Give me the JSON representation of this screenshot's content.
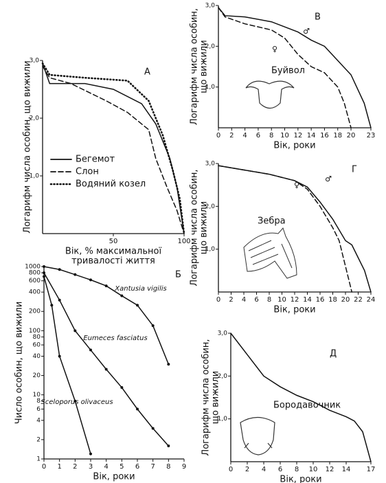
{
  "chart_data": [
    {
      "type": "line",
      "label": "А",
      "ylabel": "Логарифм числа особин, що вижили",
      "xlabel": [
        "Вік, % максимальної",
        "тривалості життя"
      ],
      "xlim": [
        0,
        100
      ],
      "ylim": [
        0,
        3
      ],
      "xticks": [
        50,
        100
      ],
      "yticks": [
        {
          "value": 1,
          "label": "1,0"
        },
        {
          "value": 2,
          "label": "2,0"
        },
        {
          "value": 3,
          "label": "3,0"
        }
      ],
      "legend": "center-left",
      "series": [
        {
          "name": "Бегемот",
          "color": "#111111",
          "style": "solid",
          "x": [
            0,
            5,
            30,
            50,
            70,
            80,
            90,
            95,
            100
          ],
          "values": [
            2.95,
            2.6,
            2.6,
            2.5,
            2.25,
            1.9,
            1.3,
            0.8,
            0
          ]
        },
        {
          "name": "Слон",
          "color": "#111111",
          "style": "dashed",
          "x": [
            0,
            5,
            20,
            45,
            60,
            75,
            80,
            88,
            95,
            100
          ],
          "values": [
            2.9,
            2.7,
            2.6,
            2.3,
            2.1,
            1.8,
            1.3,
            0.8,
            0.4,
            0
          ]
        },
        {
          "name": "Водяний козел",
          "color": "#111111",
          "style": "dotted",
          "x": [
            0,
            5,
            30,
            60,
            75,
            85,
            92,
            97,
            100
          ],
          "values": [
            2.95,
            2.75,
            2.7,
            2.65,
            2.3,
            1.7,
            1.1,
            0.6,
            0
          ]
        }
      ]
    },
    {
      "type": "line",
      "label": "Б",
      "ylabel": "Число особин, що вижили",
      "xlabel": [
        "Вік, роки"
      ],
      "xlim": [
        0,
        9
      ],
      "ylim": [
        1,
        1000
      ],
      "log_y": true,
      "markers": true,
      "xticks": [
        0,
        1,
        2,
        3,
        4,
        5,
        6,
        7,
        8,
        9
      ],
      "yticks": [
        1,
        2,
        4,
        6,
        8,
        10,
        20,
        40,
        60,
        80,
        100,
        200,
        400,
        600,
        800,
        1000
      ],
      "series": [
        {
          "name": "Xantusia vigilis",
          "color": "#111111",
          "style": "solid",
          "x": [
            0,
            1,
            2,
            3,
            4,
            5,
            6,
            7,
            8
          ],
          "values": [
            1000,
            900,
            750,
            620,
            500,
            350,
            250,
            120,
            30
          ]
        },
        {
          "name": "Eumeces fasciatus",
          "color": "#111111",
          "style": "solid",
          "x": [
            0,
            1,
            2,
            3,
            4,
            5,
            6,
            7,
            8
          ],
          "values": [
            800,
            300,
            100,
            50,
            25,
            13,
            6,
            3,
            1.6
          ]
        },
        {
          "name": "Sceloporus olivaceus",
          "color": "#111111",
          "style": "solid",
          "x": [
            0,
            0.5,
            1,
            2,
            3
          ],
          "values": [
            700,
            250,
            40,
            8,
            1.2
          ]
        }
      ]
    },
    {
      "type": "line",
      "label": "В",
      "animal": "Буйвол",
      "ylabel": [
        "Логарифм числа особин,",
        "що вижили"
      ],
      "xlabel": [
        "Вік, роки"
      ],
      "xlim": [
        0,
        23
      ],
      "ylim": [
        0,
        3
      ],
      "xticks": [
        0,
        2,
        4,
        6,
        8,
        10,
        12,
        14,
        16,
        18,
        20,
        23
      ],
      "yticks": [
        {
          "value": 1,
          "label": "1,0"
        },
        {
          "value": 2,
          "label": "2,0"
        },
        {
          "value": 3,
          "label": "3,0"
        }
      ],
      "series": [
        {
          "name": "♂",
          "color": "#111111",
          "style": "solid",
          "x": [
            0,
            1,
            4,
            8,
            12,
            14,
            16,
            18,
            20,
            22,
            23
          ],
          "values": [
            2.95,
            2.75,
            2.72,
            2.6,
            2.35,
            2.15,
            2.0,
            1.65,
            1.3,
            0.6,
            0
          ]
        },
        {
          "name": "♀",
          "color": "#111111",
          "style": "dashed",
          "x": [
            0,
            1,
            4,
            8,
            10,
            12,
            14,
            16,
            18,
            19,
            20
          ],
          "values": [
            2.95,
            2.72,
            2.55,
            2.4,
            2.2,
            1.8,
            1.5,
            1.35,
            1.0,
            0.6,
            0
          ]
        }
      ]
    },
    {
      "type": "line",
      "label": "Г",
      "animal": "Зебра",
      "ylabel": [
        "Логарифм числа особин,",
        "що вижили"
      ],
      "xlabel": [
        "Вік, роки"
      ],
      "xlim": [
        0,
        24
      ],
      "ylim": [
        0,
        3
      ],
      "xticks": [
        0,
        2,
        4,
        6,
        8,
        10,
        12,
        14,
        16,
        18,
        20,
        22,
        24
      ],
      "yticks": [
        {
          "value": 1,
          "label": "1,0"
        },
        {
          "value": 2,
          "label": "2,0"
        },
        {
          "value": 3,
          "label": "3,0"
        }
      ],
      "series": [
        {
          "name": "♂",
          "color": "#111111",
          "style": "solid",
          "x": [
            0,
            4,
            8,
            12,
            14,
            16,
            18,
            20,
            21,
            22,
            23,
            24
          ],
          "values": [
            2.95,
            2.85,
            2.75,
            2.6,
            2.45,
            2.1,
            1.7,
            1.2,
            1.1,
            0.8,
            0.5,
            0
          ]
        },
        {
          "name": "♀",
          "color": "#111111",
          "style": "dashed",
          "x": [
            0,
            8,
            12,
            14,
            16,
            18,
            19,
            20,
            21
          ],
          "values": [
            2.95,
            2.75,
            2.6,
            2.4,
            2.0,
            1.5,
            1.2,
            0.6,
            0
          ]
        }
      ]
    },
    {
      "type": "line",
      "label": "Д",
      "animal": "Бородавочник",
      "ylabel": [
        "Логарифм числа особин,",
        "що вижили"
      ],
      "xlabel": [
        "Вік, роки"
      ],
      "xlim": [
        0,
        17
      ],
      "ylim": [
        0,
        3
      ],
      "xticks": [
        0,
        2,
        4,
        6,
        8,
        10,
        12,
        14,
        17
      ],
      "yticks": [
        {
          "value": 1,
          "label": "1,0"
        },
        {
          "value": 2,
          "label": "2,0"
        },
        {
          "value": 3,
          "label": "3,0"
        }
      ],
      "series": [
        {
          "color": "#111111",
          "style": "solid",
          "x": [
            0,
            2,
            4,
            6,
            8,
            10,
            12,
            14,
            15,
            16,
            17
          ],
          "values": [
            3.0,
            2.5,
            2.0,
            1.75,
            1.55,
            1.4,
            1.2,
            1.05,
            0.95,
            0.7,
            0
          ]
        }
      ]
    }
  ]
}
